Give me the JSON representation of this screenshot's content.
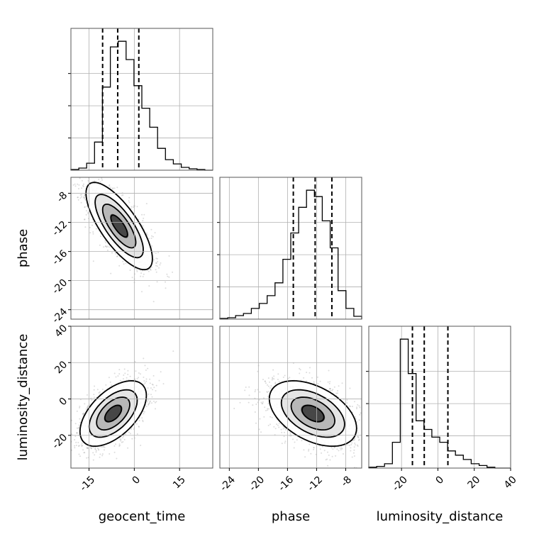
{
  "chart_data": {
    "type": "corner",
    "parameters": [
      {
        "name": "geocent_time",
        "axis_label": "geocent_time",
        "range": [
          -21,
          26
        ],
        "ticks": [
          -15,
          0,
          15
        ],
        "quantiles": [
          -10.5,
          -5.5,
          1.5
        ]
      },
      {
        "name": "phase",
        "axis_label": "phase",
        "range": [
          -25.3,
          -5.8
        ],
        "ticks": [
          -24,
          -20,
          -16,
          -12,
          -8
        ],
        "quantiles": [
          -15.2,
          -12.2,
          -9.9
        ]
      },
      {
        "name": "luminosity_distance",
        "axis_label": "luminosity_distance",
        "range": [
          -38,
          40
        ],
        "ticks": [
          -20,
          0,
          20,
          40
        ],
        "quantiles": [
          -14,
          -7.5,
          5.5
        ]
      }
    ],
    "histograms": [
      {
        "parameter": "geocent_time",
        "counts": [
          1,
          3,
          10,
          40,
          118,
          175,
          183,
          157,
          120,
          88,
          61,
          31,
          15,
          9,
          4,
          2,
          1,
          0
        ]
      },
      {
        "parameter": "phase",
        "counts": [
          1,
          2,
          5,
          8,
          15,
          22,
          33,
          51,
          84,
          121,
          157,
          181,
          172,
          138,
          100,
          40,
          15,
          4
        ]
      },
      {
        "parameter": "luminosity_distance",
        "counts": [
          1,
          2,
          5,
          30,
          150,
          110,
          55,
          45,
          36,
          30,
          20,
          15,
          10,
          5,
          3,
          1,
          0,
          0
        ]
      }
    ],
    "pairs": [
      {
        "x": "geocent_time",
        "y": "phase",
        "center": [
          -5,
          -12.5
        ],
        "sigma": [
          5.5,
          3.0
        ],
        "rho": -0.75
      },
      {
        "x": "geocent_time",
        "y": "luminosity_distance",
        "center": [
          -7,
          -8
        ],
        "sigma": [
          5.5,
          9.0
        ],
        "rho": 0.55
      },
      {
        "x": "phase",
        "y": "luminosity_distance",
        "center": [
          -12.5,
          -8
        ],
        "sigma": [
          3.0,
          9.0
        ],
        "rho": -0.45
      }
    ],
    "grid": true
  }
}
